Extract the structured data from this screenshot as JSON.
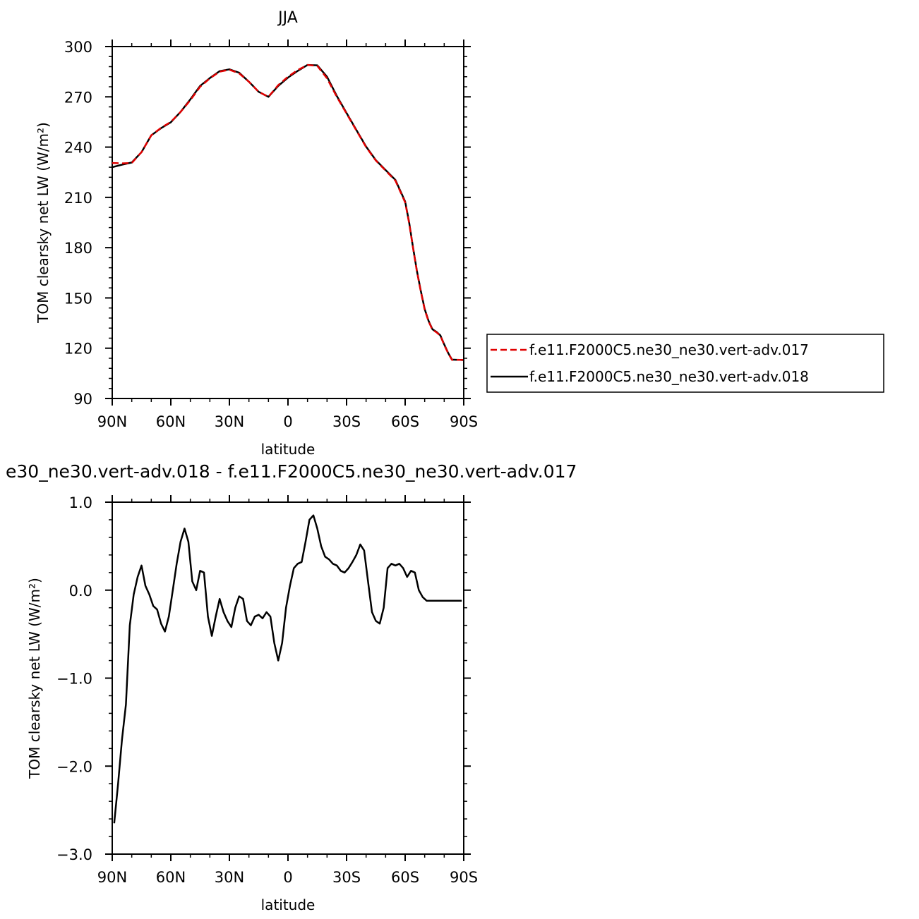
{
  "chart_data": [
    {
      "type": "line",
      "title": "JJA",
      "xlabel": "latitude",
      "ylabel": "TOM clearsky net LW (W/m²)",
      "ylim": [
        90,
        300
      ],
      "xlim": [
        90,
        -90
      ],
      "x_ticks": [
        90,
        60,
        30,
        0,
        -30,
        -60,
        -90
      ],
      "x_tick_labels": [
        "90N",
        "60N",
        "30N",
        "0",
        "30S",
        "60S",
        "90S"
      ],
      "y_ticks": [
        90,
        120,
        150,
        180,
        210,
        240,
        270,
        300
      ],
      "y_tick_labels": [
        "90",
        "120",
        "150",
        "180",
        "210",
        "240",
        "270",
        "300"
      ],
      "legend": {
        "placement": "right",
        "entries": [
          {
            "label": "f.e11.F2000C5.ne30_ne30.vert-adv.017",
            "color": "#e00000",
            "dash": "dashed"
          },
          {
            "label": "f.e11.F2000C5.ne30_ne30.vert-adv.018",
            "color": "#000000",
            "dash": "solid"
          }
        ]
      },
      "series": [
        {
          "name": "f.e11.F2000C5.ne30_ne30.vert-adv.017",
          "color": "#e00000",
          "x": [
            90,
            85,
            80,
            75,
            70,
            65,
            60,
            55,
            50,
            45,
            40,
            35,
            30,
            25,
            20,
            15,
            10,
            5,
            0,
            -5,
            -10,
            -15,
            -20,
            -25,
            -30,
            -35,
            -40,
            -45,
            -50,
            -55,
            -60,
            -62,
            -64,
            -66,
            -68,
            -70,
            -72,
            -74,
            -76,
            -78,
            -80,
            -82,
            -84,
            -86,
            -88,
            -90
          ],
          "y": [
            230.5,
            230.3,
            230.5,
            237,
            247,
            251.5,
            255,
            261,
            268,
            276,
            281,
            285,
            286.2,
            284,
            279,
            273,
            270,
            277,
            282,
            286,
            289,
            288.5,
            281,
            270,
            260,
            250,
            240,
            232,
            226,
            220,
            207,
            195,
            180,
            166,
            154,
            143,
            136,
            131,
            129.5,
            127.5,
            122,
            117,
            113,
            113,
            113,
            113
          ]
        },
        {
          "name": "f.e11.F2000C5.ne30_ne30.vert-adv.018",
          "color": "#000000",
          "x": [
            90,
            85,
            80,
            75,
            70,
            65,
            60,
            55,
            50,
            45,
            40,
            35,
            30,
            25,
            20,
            15,
            10,
            5,
            0,
            -5,
            -10,
            -15,
            -20,
            -25,
            -30,
            -35,
            -40,
            -45,
            -50,
            -55,
            -60,
            -62,
            -64,
            -66,
            -68,
            -70,
            -72,
            -74,
            -76,
            -78,
            -80,
            -82,
            -84,
            -86,
            -88,
            -90
          ],
          "y": [
            228,
            229.5,
            230.8,
            237,
            247,
            251.3,
            254.8,
            261,
            268.5,
            276.5,
            281.2,
            285.3,
            286.4,
            284.4,
            279,
            273,
            270,
            276.5,
            281.5,
            285.5,
            289,
            288.8,
            282,
            270.5,
            260.3,
            250.3,
            240.3,
            232.2,
            226.3,
            220.4,
            207.5,
            195.5,
            180.3,
            166.3,
            154.4,
            143.3,
            136.3,
            131.3,
            129.8,
            127.7,
            122.3,
            117.2,
            113.2,
            113.1,
            113,
            112.9
          ]
        }
      ]
    },
    {
      "type": "line",
      "title": "e30_ne30.vert-adv.018 - f.e11.F2000C5.ne30_ne30.vert-adv.017",
      "xlabel": "latitude",
      "ylabel": "TOM clearsky net LW (W/m²)",
      "ylim": [
        -3.0,
        1.0
      ],
      "xlim": [
        90,
        -90
      ],
      "x_ticks": [
        90,
        60,
        30,
        0,
        -30,
        -60,
        -90
      ],
      "x_tick_labels": [
        "90N",
        "60N",
        "30N",
        "0",
        "30S",
        "60S",
        "90S"
      ],
      "y_ticks": [
        1.0,
        0.0,
        -1.0,
        -2.0,
        -3.0
      ],
      "y_tick_labels": [
        "1.0",
        "0.0",
        "−1.0",
        "−2.0",
        "−3.0"
      ],
      "series": [
        {
          "color": "#000000",
          "x": [
            89,
            87,
            85,
            83,
            81,
            79,
            77,
            75,
            73,
            71,
            69,
            67,
            65,
            63,
            61,
            59,
            57,
            55,
            53,
            51,
            49,
            47,
            45,
            43,
            41,
            39,
            37,
            35,
            33,
            31,
            29,
            27,
            25,
            23,
            21,
            19,
            17,
            15,
            13,
            11,
            9,
            7,
            5,
            3,
            1,
            -1,
            -3,
            -5,
            -7,
            -9,
            -11,
            -13,
            -15,
            -17,
            -19,
            -21,
            -23,
            -25,
            -27,
            -29,
            -31,
            -33,
            -35,
            -37,
            -39,
            -41,
            -43,
            -45,
            -47,
            -49,
            -51,
            -53,
            -55,
            -57,
            -59,
            -61,
            -63,
            -65,
            -67,
            -69,
            -71,
            -73,
            -75,
            -77,
            -79,
            -81,
            -83,
            -85,
            -87,
            -89
          ],
          "y": [
            -2.65,
            -2.2,
            -1.7,
            -1.3,
            -0.4,
            -0.05,
            0.15,
            0.28,
            0.05,
            -0.05,
            -0.18,
            -0.22,
            -0.38,
            -0.47,
            -0.3,
            0.0,
            0.3,
            0.55,
            0.7,
            0.55,
            0.1,
            0.0,
            0.22,
            0.2,
            -0.3,
            -0.52,
            -0.3,
            -0.1,
            -0.25,
            -0.35,
            -0.42,
            -0.2,
            -0.07,
            -0.1,
            -0.35,
            -0.4,
            -0.3,
            -0.28,
            -0.32,
            -0.25,
            -0.3,
            -0.6,
            -0.8,
            -0.6,
            -0.2,
            0.05,
            0.25,
            0.3,
            0.32,
            0.55,
            0.8,
            0.85,
            0.7,
            0.5,
            0.38,
            0.35,
            0.3,
            0.28,
            0.22,
            0.2,
            0.25,
            0.32,
            0.4,
            0.52,
            0.45,
            0.1,
            -0.25,
            -0.35,
            -0.38,
            -0.2,
            0.25,
            0.3,
            0.28,
            0.3,
            0.25,
            0.15,
            0.22,
            0.2,
            0.0,
            -0.08,
            -0.12,
            -0.12,
            -0.12,
            -0.12,
            -0.12,
            -0.12,
            -0.12,
            -0.12,
            -0.12,
            -0.12
          ]
        }
      ]
    }
  ]
}
